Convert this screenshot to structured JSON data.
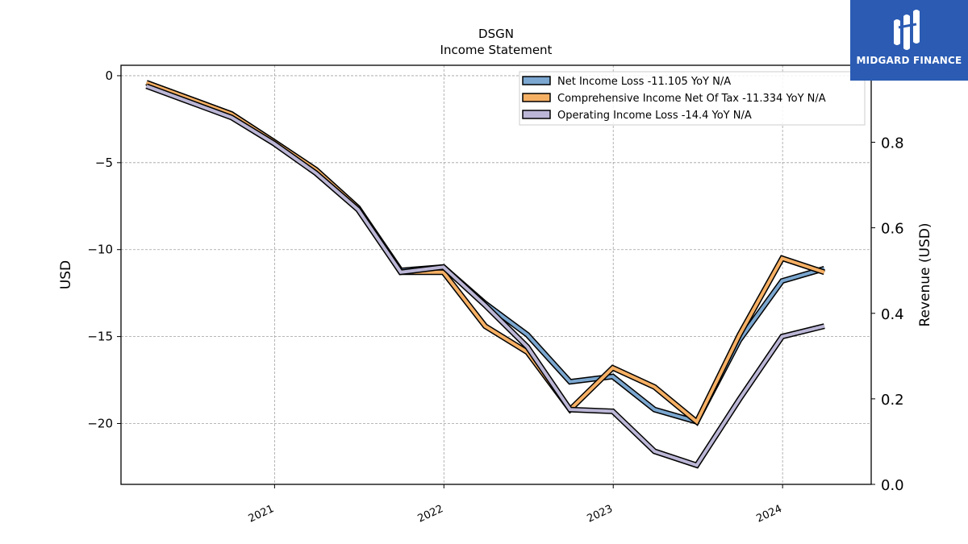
{
  "chart_data": {
    "type": "line",
    "title": "DSGN",
    "subtitle": "Income Statement",
    "ylabel": "USD",
    "ylabel_right": "Revenue (USD)",
    "ylim": [
      -23.5,
      0.6
    ],
    "ylim_right": [
      0.0,
      0.98
    ],
    "yticks": [
      0,
      -5,
      -10,
      -15,
      -20
    ],
    "ytick_labels": [
      "0",
      "−5",
      "−10",
      "−15",
      "−20"
    ],
    "yticks_right": [
      0.0,
      0.2,
      0.4,
      0.6,
      0.8
    ],
    "ytick_labels_right": [
      "0.0",
      "0.2",
      "0.4",
      "0.6",
      "0.8"
    ],
    "xlim": [
      "2020-02-05",
      "2024-07-10"
    ],
    "xticks": [
      "2021-01-01",
      "2022-01-01",
      "2023-01-01",
      "2024-01-01"
    ],
    "xtick_labels": [
      "2021",
      "2022",
      "2023",
      "2024"
    ],
    "grid": true,
    "legend_position": "top-right",
    "x": [
      "2020-03-31",
      "2020-09-30",
      "2020-12-31",
      "2021-03-31",
      "2021-06-30",
      "2021-09-30",
      "2021-12-31",
      "2022-03-31",
      "2022-06-30",
      "2022-09-30",
      "2022-12-31",
      "2023-03-31",
      "2023-06-30",
      "2023-09-30",
      "2023-12-31",
      "2024-03-31"
    ],
    "series": [
      {
        "name": "Net Income Loss",
        "legend_label": "Net Income Loss  -11.105 YoY N/A",
        "color": "#7ba7d0",
        "values": [
          -0.4,
          -2.2,
          -3.8,
          -5.4,
          -7.6,
          -11.2,
          -11.0,
          -13.1,
          -14.9,
          -17.6,
          -17.3,
          -19.2,
          -19.9,
          -15.2,
          -11.8,
          -11.1
        ]
      },
      {
        "name": "Comprehensive Income Net Of Tax",
        "legend_label": "Comprehensive Income Net Of Tax  -11.334 YoY N/A",
        "color": "#f6b064",
        "values": [
          -0.4,
          -2.2,
          -3.8,
          -5.4,
          -7.6,
          -11.3,
          -11.3,
          -14.4,
          -15.9,
          -19.2,
          -16.8,
          -17.9,
          -19.9,
          -14.9,
          -10.5,
          -11.3
        ]
      },
      {
        "name": "Operating Income Loss",
        "legend_label": "Operating Income Loss  -14.4 YoY N/A",
        "color": "#bcb6d6",
        "values": [
          -0.6,
          -2.4,
          -3.9,
          -5.6,
          -7.7,
          -11.3,
          -11.0,
          -13.2,
          -15.6,
          -19.2,
          -19.3,
          -21.6,
          -22.4,
          -18.6,
          -15.0,
          -14.4
        ]
      }
    ]
  },
  "logo": {
    "text": "MIDGARD FINANCE",
    "color": "#2b5bb3"
  }
}
